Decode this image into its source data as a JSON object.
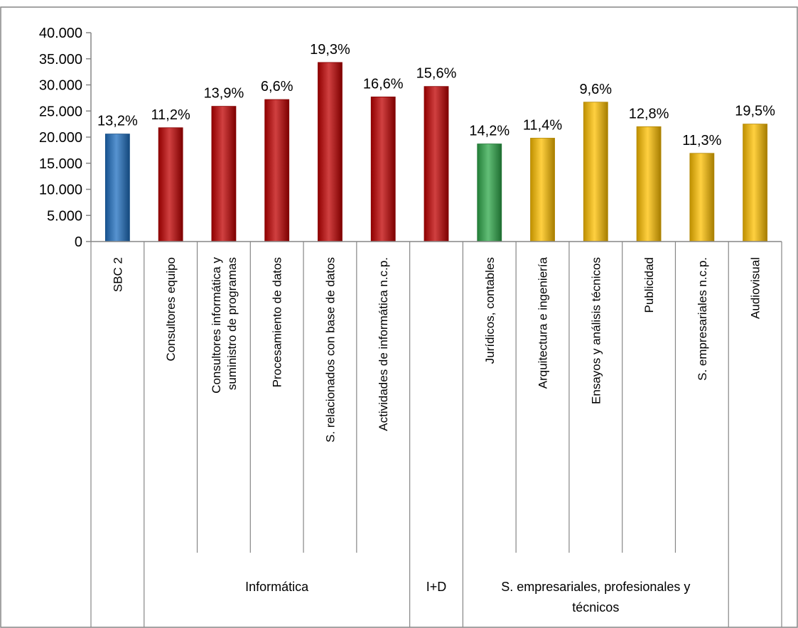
{
  "chart_data": {
    "type": "bar",
    "ylim": [
      0,
      40000
    ],
    "yticks": [
      "0",
      "5.000",
      "10.000",
      "15.000",
      "20.000",
      "25.000",
      "30.000",
      "35.000",
      "40.000"
    ],
    "grid": false,
    "legend": "none",
    "categories": [
      "SBC 2",
      "Consultores equipo",
      "Consultores informática  y suministro de programas",
      "Procesamiento de datos",
      "S. relacionados con base  de datos",
      "Actividades de informática n.c.p.",
      "",
      "Jurídicos, contables",
      "Arquitectura e ingeniería",
      "Ensayos y análisis  técnicos",
      "Publicidad",
      "S. empresariales n.c.p.",
      "Audiovisual"
    ],
    "values": [
      20600,
      21800,
      25900,
      27200,
      34300,
      27700,
      29700,
      18700,
      19800,
      26700,
      22000,
      16900,
      22500
    ],
    "data_labels": [
      "13,2%",
      "11,2%",
      "13,9%",
      "6,6%",
      "19,3%",
      "16,6%",
      "15,6%",
      "14,2%",
      "11,4%",
      "9,6%",
      "12,8%",
      "11,3%",
      "19,5%"
    ],
    "bar_colors": [
      "#1f6fc0",
      "#c00000",
      "#c00000",
      "#c00000",
      "#c00000",
      "#c00000",
      "#c00000",
      "#2ea84a",
      "#ffc000",
      "#ffc000",
      "#ffc000",
      "#ffc000",
      "#ffc000"
    ],
    "groups": [
      {
        "label": "",
        "start": 0,
        "end": 0
      },
      {
        "label": "Informática",
        "start": 1,
        "end": 5
      },
      {
        "label": "I+D",
        "start": 6,
        "end": 6
      },
      {
        "label": "S. empresariales, profesionales y técnicos",
        "start": 7,
        "end": 11
      },
      {
        "label": "",
        "start": 12,
        "end": 12
      }
    ]
  }
}
